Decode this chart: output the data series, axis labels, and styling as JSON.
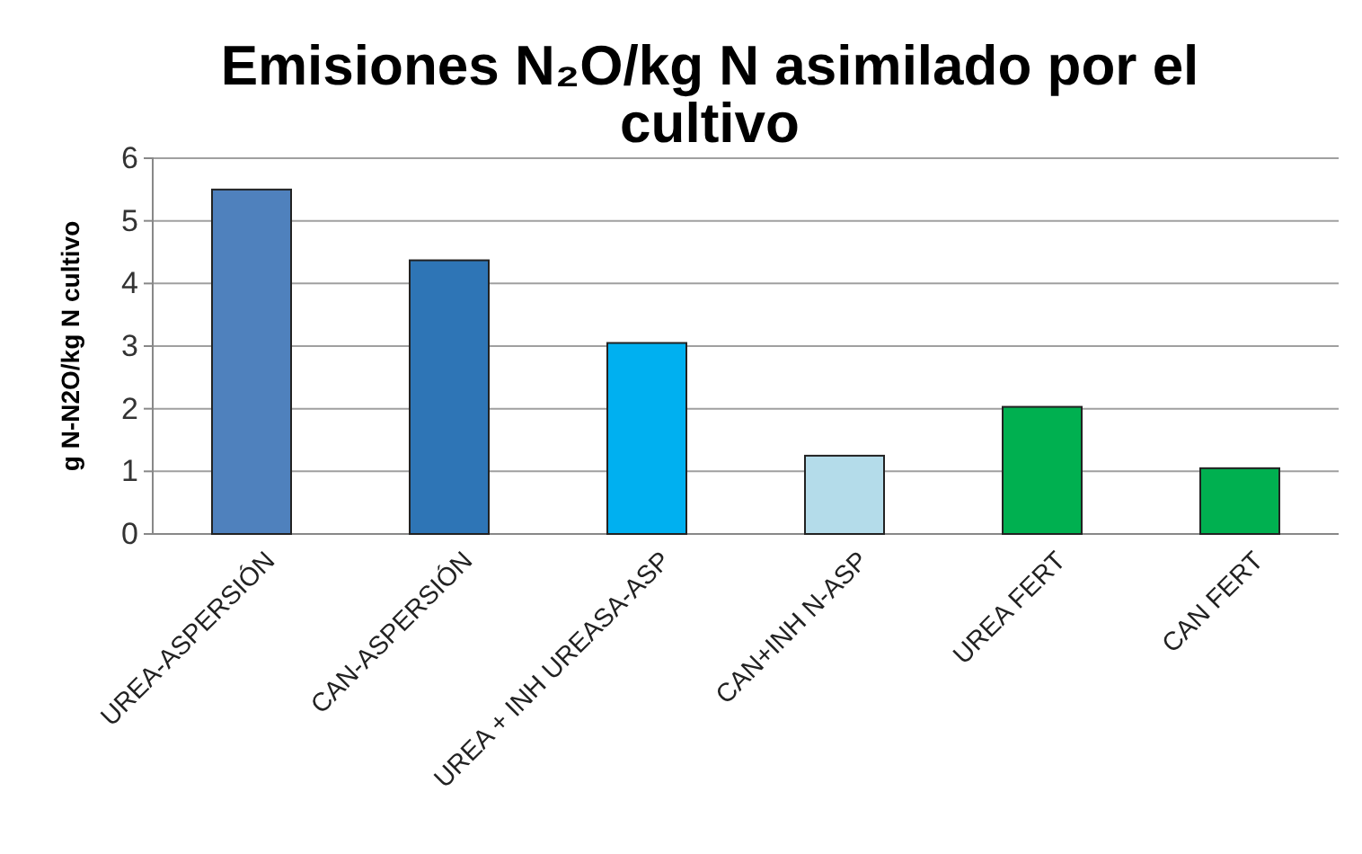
{
  "chart_data": {
    "type": "bar",
    "title": "Emisiones N₂O/kg N asimilado por el cultivo",
    "ylabel": "g N-N2O/kg N cultivo",
    "categories": [
      "UREA-ASPERSIÓN",
      "CAN-ASPERSIÓN",
      "UREA + INH UREASA-ASP",
      "CAN+INH N-ASP",
      "UREA FERT",
      "CAN FERT"
    ],
    "values": [
      5.5,
      4.37,
      3.05,
      1.25,
      2.03,
      1.05
    ],
    "colors": [
      "#4f81bd",
      "#2e75b6",
      "#00b0f0",
      "#b4dcea",
      "#00b050",
      "#00b050"
    ],
    "ylim": [
      0,
      6
    ],
    "yticks": [
      0,
      1,
      2,
      3,
      4,
      5,
      6
    ],
    "grid": "y"
  }
}
